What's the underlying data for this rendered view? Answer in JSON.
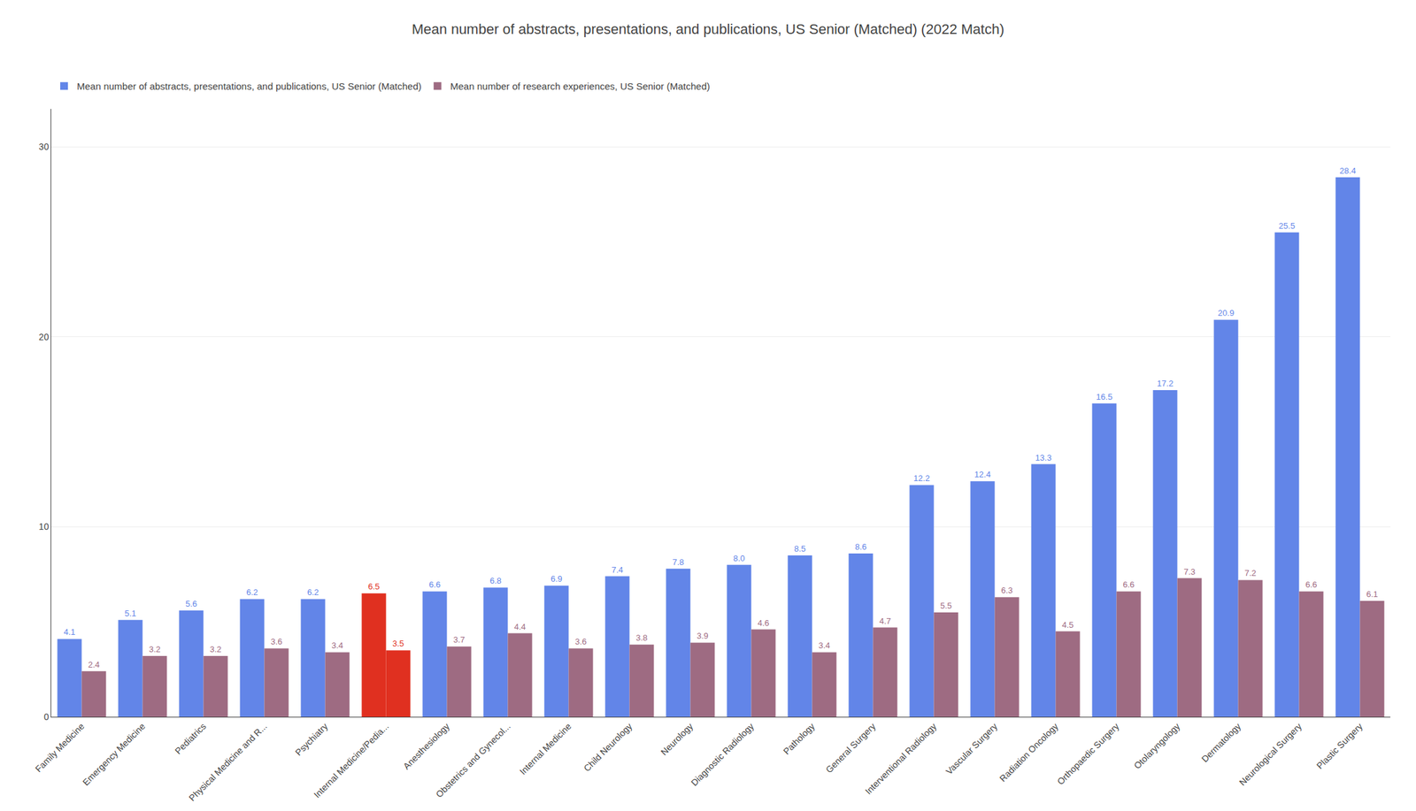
{
  "chart_data": {
    "type": "bar",
    "title": "Mean number of abstracts, presentations, and publications, US Senior (Matched) (2022 Match)",
    "categories": [
      "Family Medicine",
      "Emergency Medicine",
      "Pediatrics",
      "Physical Medicine and R...",
      "Psychiatry",
      "Internal Medicine/Pedia...",
      "Anesthesiology",
      "Obstetrics and Gynecol...",
      "Internal Medicine",
      "Child Neurology",
      "Neurology",
      "Diagnostic Radiology",
      "Pathology",
      "General Surgery",
      "Interventional Radiology",
      "Vascular Surgery",
      "Radiation Oncology",
      "Orthopaedic Surgery",
      "Otolaryngology",
      "Dermatology",
      "Neurological Surgery",
      "Plastic Surgery"
    ],
    "series": [
      {
        "name": "Mean number of abstracts, presentations, and publications, US Senior (Matched)",
        "color": "#6285e8",
        "colors": [
          "#6285e8",
          "#6285e8",
          "#6285e8",
          "#6285e8",
          "#6285e8",
          "#e03020",
          "#6285e8",
          "#6285e8",
          "#6285e8",
          "#6285e8",
          "#6285e8",
          "#6285e8",
          "#6285e8",
          "#6285e8",
          "#6285e8",
          "#6285e8",
          "#6285e8",
          "#6285e8",
          "#6285e8",
          "#6285e8",
          "#6285e8",
          "#6285e8"
        ],
        "values": [
          4.1,
          5.1,
          5.6,
          6.2,
          6.2,
          6.5,
          6.6,
          6.8,
          6.9,
          7.4,
          7.8,
          8.0,
          8.5,
          8.6,
          12.2,
          12.4,
          13.3,
          16.5,
          17.2,
          20.9,
          25.5,
          28.4
        ],
        "value_labels": [
          "4.1",
          "5.1",
          "5.6",
          "6.2",
          "6.2",
          "6.5",
          "6.6",
          "6.8",
          "6.9",
          "7.4",
          "7.8",
          "8.0",
          "8.5",
          "8.6",
          "12.2",
          "12.4",
          "13.3",
          "16.5",
          "17.2",
          "20.9",
          "25.5",
          "28.4"
        ]
      },
      {
        "name": "Mean number of research experiences, US Senior (Matched)",
        "color": "#9e6b82",
        "colors": [
          "#9e6b82",
          "#9e6b82",
          "#9e6b82",
          "#9e6b82",
          "#9e6b82",
          "#e03020",
          "#9e6b82",
          "#9e6b82",
          "#9e6b82",
          "#9e6b82",
          "#9e6b82",
          "#9e6b82",
          "#9e6b82",
          "#9e6b82",
          "#9e6b82",
          "#9e6b82",
          "#9e6b82",
          "#9e6b82",
          "#9e6b82",
          "#9e6b82",
          "#9e6b82",
          "#9e6b82"
        ],
        "values": [
          2.4,
          3.2,
          3.2,
          3.6,
          3.4,
          3.5,
          3.7,
          4.4,
          3.6,
          3.8,
          3.9,
          4.6,
          3.4,
          4.7,
          5.5,
          6.3,
          4.5,
          6.6,
          7.3,
          7.2,
          6.6,
          6.1
        ]
      }
    ],
    "ylim": [
      0,
      32
    ],
    "yticks": [
      0,
      10,
      20,
      30
    ],
    "grid": true,
    "data_labels": true,
    "legend": "top"
  }
}
